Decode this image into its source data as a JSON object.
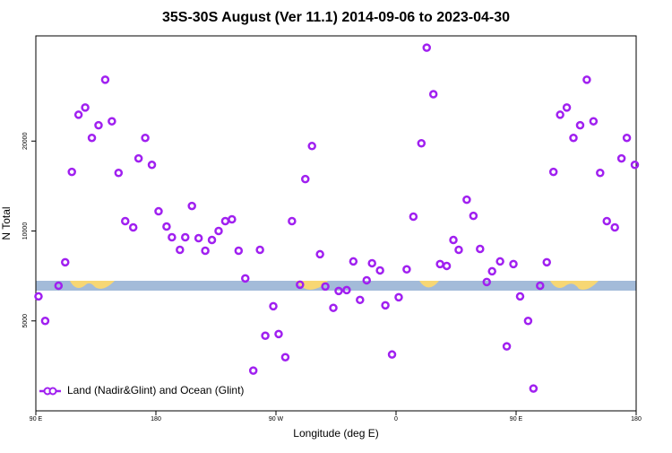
{
  "chart_data": {
    "type": "scatter",
    "title": "35S-30S August (Ver 11.1)   2014-09-06 to 2023-04-30",
    "x_label": "Longitude (deg E)",
    "y_label": "N Total",
    "xlim": [
      90,
      540
    ],
    "xticks": [
      {
        "value": 90,
        "label": "90 E"
      },
      180,
      {
        "value": 270,
        "label": "90 W"
      },
      {
        "value": 360,
        "label": "0"
      },
      {
        "value": 450,
        "label": "90 E"
      },
      {
        "value": 540,
        "label": "180"
      }
    ],
    "ylim": [
      2500,
      45000
    ],
    "yticks": [
      5000,
      10000,
      20000
    ],
    "log_scale_y": true,
    "legend": "bottom-left",
    "x": [
      92,
      97,
      107,
      112,
      117,
      122,
      127,
      132,
      137,
      142,
      147,
      152,
      157,
      163,
      167,
      172,
      177,
      182,
      188,
      192,
      198,
      202,
      207,
      212,
      217,
      222,
      227,
      232,
      237,
      242,
      247,
      253,
      258,
      262,
      268,
      272,
      277,
      282,
      288,
      292,
      297,
      303,
      307,
      313,
      317,
      323,
      328,
      333,
      338,
      342,
      348,
      352,
      357,
      362,
      368,
      373,
      379,
      383,
      388,
      393,
      398,
      403,
      407,
      413,
      418,
      423,
      428,
      432,
      438,
      443,
      448,
      453,
      459,
      463,
      468,
      473,
      478,
      483,
      488,
      493,
      498,
      503,
      508,
      513,
      518,
      524,
      529,
      533,
      539
    ],
    "series": [
      {
        "name": "Land (Nadir&Glint) and Ocean (Glint)",
        "color": "#a020f0",
        "values": [
          6040,
          5000,
          6560,
          7860,
          15770,
          24500,
          25900,
          20500,
          22600,
          32100,
          23300,
          15650,
          10790,
          10280,
          17500,
          20500,
          16650,
          11640,
          10350,
          9530,
          8650,
          9530,
          12130,
          9460,
          8590,
          9330,
          10000,
          10790,
          10940,
          8590,
          6940,
          3410,
          8650,
          4460,
          5600,
          4520,
          3780,
          10790,
          6610,
          14920,
          19250,
          8360,
          6520,
          5530,
          6300,
          6340,
          7910,
          5880,
          6840,
          7800,
          7380,
          5640,
          3860,
          6000,
          7440,
          11170,
          19660,
          41100,
          28700,
          7750,
          7640,
          9330,
          8650,
          12730,
          11240,
          8710,
          6750,
          7330,
          7910,
          4110,
          7750,
          6040,
          5000,
          2970,
          6560,
          7860,
          15770,
          24500,
          25900,
          20500,
          22600,
          32100,
          23300,
          15650,
          10790,
          10280,
          17500,
          20500,
          16650
        ]
      }
    ]
  }
}
